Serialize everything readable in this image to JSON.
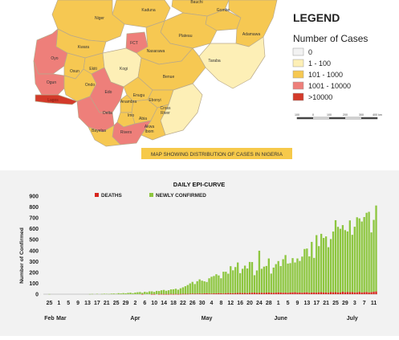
{
  "map": {
    "caption": "MAP SHOWING DISTRIBUTION OF CASES IN NIGERIA",
    "legend": {
      "title": "LEGEND",
      "subtitle": "Number of Cases",
      "items": [
        {
          "label": "0",
          "color": "#f2f2f2"
        },
        {
          "label": "1 - 100",
          "color": "#fdefb6"
        },
        {
          "label": "101 - 1000",
          "color": "#f6c852"
        },
        {
          "label": "1001 - 10000",
          "color": "#ee7f7a"
        },
        {
          "label": ">10000",
          "color": "#d33a2a"
        }
      ],
      "scale": {
        "ticks": [
          "100",
          "0",
          "100",
          "200",
          "300",
          "400 km"
        ]
      }
    },
    "states": [
      {
        "name": "Kaduna",
        "category": "101 - 1000"
      },
      {
        "name": "Bauchi",
        "category": "101 - 1000"
      },
      {
        "name": "Gombe",
        "category": "101 - 1000"
      },
      {
        "name": "Niger",
        "category": "101 - 1000"
      },
      {
        "name": "Adamawa",
        "category": "101 - 1000"
      },
      {
        "name": "FCT",
        "category": "1001 - 10000"
      },
      {
        "name": "Plateau",
        "category": "101 - 1000"
      },
      {
        "name": "Kwara",
        "category": "101 - 1000"
      },
      {
        "name": "Nasarawa",
        "category": "101 - 1000"
      },
      {
        "name": "Oyo",
        "category": "1001 - 10000"
      },
      {
        "name": "Taraba",
        "category": "1 - 100"
      },
      {
        "name": "Ekiti",
        "category": "101 - 1000"
      },
      {
        "name": "Osun",
        "category": "101 - 1000"
      },
      {
        "name": "Kogi",
        "category": "1 - 100"
      },
      {
        "name": "Ogun",
        "category": "1001 - 10000"
      },
      {
        "name": "Ondo",
        "category": "101 - 1000"
      },
      {
        "name": "Benue",
        "category": "101 - 1000"
      },
      {
        "name": "Lagos",
        "category": ">10000"
      },
      {
        "name": "Edo",
        "category": "1001 - 10000"
      },
      {
        "name": "Enugu",
        "category": "101 - 1000"
      },
      {
        "name": "Anambra",
        "category": "101 - 1000"
      },
      {
        "name": "Ebonyi",
        "category": "101 - 1000"
      },
      {
        "name": "Delta",
        "category": "1001 - 10000"
      },
      {
        "name": "Imo",
        "category": "101 - 1000"
      },
      {
        "name": "Abia",
        "category": "101 - 1000"
      },
      {
        "name": "Cross River",
        "category": "1 - 100"
      },
      {
        "name": "Bayelsa",
        "category": "101 - 1000"
      },
      {
        "name": "Rivers",
        "category": "1001 - 10000"
      },
      {
        "name": "Akwa Ibom",
        "category": "101 - 1000"
      }
    ]
  },
  "chart_data": {
    "type": "bar",
    "title": "DAILY EPI-CURVE",
    "ylabel": "Number of Confirmed",
    "xlabel": "",
    "ylim": [
      0,
      900
    ],
    "yticks": [
      0,
      100,
      200,
      300,
      400,
      500,
      600,
      700,
      800,
      900
    ],
    "stacked": true,
    "legend_position": "top",
    "colors": {
      "DEATHS": "#d7261e",
      "NEWLY CONFIRMED": "#8dc63f"
    },
    "x_tick_labels": [
      "25",
      "1",
      "5",
      "9",
      "13",
      "17",
      "21",
      "25",
      "29",
      "2",
      "6",
      "10",
      "14",
      "18",
      "22",
      "26",
      "30",
      "4",
      "8",
      "12",
      "16",
      "20",
      "24",
      "28",
      "1",
      "5",
      "9",
      "13",
      "17",
      "21",
      "25",
      "29",
      "3",
      "7",
      "11"
    ],
    "month_labels": [
      "Feb",
      "Mar",
      "Apr",
      "May",
      "June",
      "July"
    ],
    "start_date": "2020-02-25",
    "dates_note": "one bar per day from Feb 25 to Jul 11",
    "series": [
      {
        "name": "DEATHS",
        "values": [
          0,
          0,
          0,
          0,
          0,
          0,
          0,
          0,
          0,
          0,
          0,
          0,
          0,
          0,
          0,
          0,
          0,
          0,
          0,
          0,
          0,
          0,
          0,
          0,
          0,
          0,
          0,
          0,
          0,
          0,
          0,
          0,
          0,
          0,
          0,
          0,
          0,
          0,
          0,
          1,
          0,
          0,
          0,
          1,
          1,
          0,
          1,
          2,
          1,
          1,
          1,
          2,
          1,
          2,
          1,
          2,
          3,
          3,
          3,
          4,
          5,
          4,
          5,
          6,
          4,
          7,
          8,
          6,
          5,
          7,
          7,
          9,
          8,
          6,
          9,
          10,
          9,
          8,
          10,
          11,
          12,
          10,
          11,
          9,
          12,
          13,
          14,
          11,
          12,
          13,
          12,
          14,
          15,
          13,
          12,
          14,
          16,
          15,
          13,
          14,
          12,
          15,
          16,
          18,
          14,
          15,
          13,
          16,
          17,
          12,
          15,
          16,
          14,
          17,
          18,
          15,
          16,
          13,
          19,
          17,
          18,
          16,
          15,
          22,
          17,
          20,
          18,
          19,
          16,
          17,
          21,
          15,
          18,
          20,
          16,
          18,
          22,
          25
        ]
      },
      {
        "name": "NEWLY CONFIRMED",
        "values": [
          1,
          0,
          0,
          0,
          0,
          0,
          0,
          0,
          0,
          0,
          0,
          0,
          0,
          0,
          0,
          0,
          0,
          1,
          2,
          0,
          3,
          0,
          2,
          4,
          3,
          2,
          5,
          6,
          4,
          9,
          7,
          10,
          8,
          12,
          14,
          9,
          15,
          18,
          20,
          12,
          22,
          18,
          26,
          25,
          20,
          30,
          28,
          34,
          38,
          30,
          35,
          42,
          44,
          48,
          40,
          52,
          60,
          70,
          81,
          95,
          108,
          89,
          114,
          130,
          120,
          111,
          104,
          140,
          155,
          160,
          176,
          163,
          138,
          200,
          197,
          178,
          248,
          211,
          239,
          280,
          181,
          223,
          251,
          227,
          284,
          282,
          160,
          207,
          387,
          220,
          241,
          245,
          313,
          176,
          232,
          262,
          288,
          243,
          308,
          345,
          269,
          270,
          315,
          273,
          314,
          290,
          332,
          399,
          402,
          335,
          465,
          317,
          528,
          424,
          536,
          501,
          514,
          418,
          487,
          558,
          661,
          602,
          585,
          612,
          571,
          556,
          659,
          526,
          603,
          689,
          675,
          652,
          690,
          727,
          740,
          549,
          660,
          789
        ]
      }
    ]
  }
}
